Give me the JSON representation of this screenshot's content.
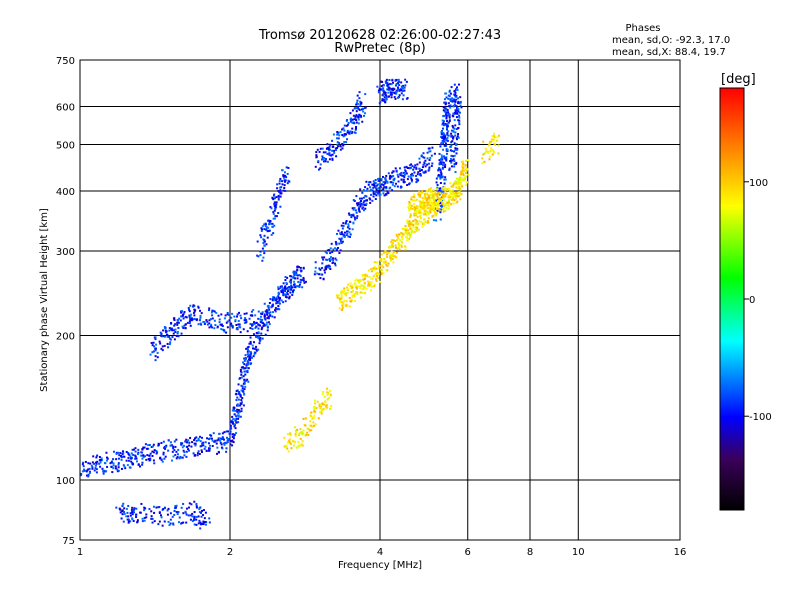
{
  "chart_data": {
    "type": "scatter",
    "title": "Tromsø 20120628 02:26:00-02:27:43",
    "subtitle": "RwPretec (8p)",
    "xlabel": "Frequency [MHz]",
    "ylabel": "Stationary phase Virtual Height [km]",
    "x_scale": "log",
    "y_scale": "log",
    "xlim": [
      1,
      16
    ],
    "ylim": [
      75,
      750
    ],
    "x_ticks": [
      1,
      2,
      4,
      6,
      8,
      10,
      16
    ],
    "x_tick_labels": [
      "1",
      "2",
      "4",
      "6",
      "8",
      "10",
      "16"
    ],
    "y_ticks": [
      75,
      100,
      200,
      300,
      400,
      500,
      600,
      750
    ],
    "y_tick_labels": [
      "75",
      "100",
      "200",
      "300",
      "400",
      "500",
      "600",
      "750"
    ],
    "grid": true,
    "stats": {
      "header": "Phases",
      "line_o": "mean, sd,O: -92.3, 17.0",
      "line_x": "mean, sd,X: 88.4, 19.7"
    },
    "colorbar": {
      "label": "[deg]",
      "range": [
        -180,
        180
      ],
      "ticks": [
        100,
        0,
        -100
      ],
      "tick_labels": [
        "100",
        "0",
        "-100"
      ]
    },
    "series": [
      {
        "mode": "O",
        "phase_deg": -92,
        "traces": [
          [
            [
              1.0,
              105
            ],
            [
              1.1,
              108
            ],
            [
              1.2,
              110
            ],
            [
              1.3,
              112
            ],
            [
              1.4,
              114
            ],
            [
              1.55,
              116
            ],
            [
              1.7,
              118
            ],
            [
              1.85,
              119
            ],
            [
              2.0,
              121
            ],
            [
              2.05,
              135
            ],
            [
              2.1,
              150
            ],
            [
              2.15,
              170
            ],
            [
              2.2,
              185
            ],
            [
              2.3,
              205
            ],
            [
              2.4,
              225
            ],
            [
              2.5,
              240
            ],
            [
              2.6,
              250
            ],
            [
              2.7,
              260
            ],
            [
              2.8,
              270
            ]
          ],
          [
            [
              2.3,
              300
            ],
            [
              2.4,
              340
            ],
            [
              2.5,
              390
            ],
            [
              2.6,
              440
            ]
          ],
          [
            [
              1.4,
              185
            ],
            [
              1.5,
              200
            ],
            [
              1.6,
              215
            ],
            [
              1.7,
              222
            ],
            [
              1.9,
              214
            ],
            [
              2.1,
              212
            ],
            [
              2.3,
              220
            ]
          ],
          [
            [
              3.0,
              270
            ],
            [
              3.2,
              290
            ],
            [
              3.4,
              330
            ],
            [
              3.6,
              370
            ],
            [
              3.8,
              400
            ],
            [
              4.0,
              410
            ],
            [
              4.2,
              420
            ],
            [
              4.5,
              430
            ],
            [
              4.8,
              440
            ],
            [
              5.1,
              480
            ]
          ],
          [
            [
              5.2,
              360
            ],
            [
              5.3,
              410
            ],
            [
              5.35,
              460
            ],
            [
              5.4,
              520
            ],
            [
              5.45,
              580
            ],
            [
              5.5,
              640
            ]
          ],
          [
            [
              5.6,
              450
            ],
            [
              5.65,
              520
            ],
            [
              5.7,
              600
            ],
            [
              5.75,
              640
            ]
          ],
          [
            [
              3.0,
              460
            ],
            [
              3.2,
              490
            ],
            [
              3.4,
              520
            ],
            [
              3.6,
              570
            ],
            [
              3.7,
              620
            ]
          ],
          [
            [
              4.0,
              640
            ],
            [
              4.1,
              650
            ],
            [
              4.3,
              655
            ],
            [
              4.5,
              650
            ]
          ],
          [
            [
              1.2,
              85
            ],
            [
              1.3,
              86
            ],
            [
              1.5,
              84
            ],
            [
              1.7,
              86
            ],
            [
              1.8,
              82
            ]
          ]
        ]
      },
      {
        "mode": "X",
        "phase_deg": 88,
        "traces": [
          [
            [
              3.3,
              235
            ],
            [
              3.5,
              245
            ],
            [
              3.7,
              255
            ],
            [
              3.9,
              265
            ],
            [
              4.1,
              285
            ],
            [
              4.3,
              305
            ],
            [
              4.5,
              325
            ],
            [
              4.7,
              345
            ],
            [
              4.9,
              360
            ],
            [
              5.1,
              370
            ],
            [
              5.3,
              380
            ],
            [
              5.5,
              390
            ],
            [
              5.7,
              400
            ],
            [
              5.85,
              420
            ],
            [
              5.95,
              450
            ]
          ],
          [
            [
              4.6,
              370
            ],
            [
              4.8,
              380
            ],
            [
              5.0,
              385
            ],
            [
              5.2,
              390
            ]
          ],
          [
            [
              2.6,
              120
            ],
            [
              2.8,
              125
            ],
            [
              3.0,
              140
            ],
            [
              3.2,
              150
            ]
          ],
          [
            [
              6.5,
              480
            ],
            [
              6.9,
              510
            ]
          ]
        ]
      }
    ]
  }
}
